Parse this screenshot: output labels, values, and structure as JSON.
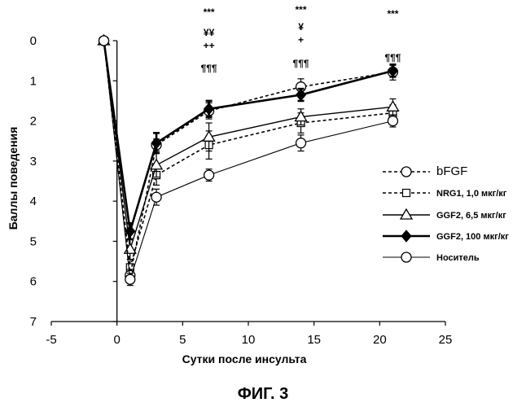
{
  "chart_data": {
    "type": "line",
    "title": "",
    "xlabel": "Сутки после инсульта",
    "ylabel": "Баллы поведения",
    "xlim": [
      -5,
      25
    ],
    "ylim": [
      0,
      7
    ],
    "y_inverted": true,
    "xticks": [
      "-5",
      "0",
      "5",
      "10",
      "15",
      "20",
      "25"
    ],
    "yticks": [
      "0",
      "1",
      "2",
      "3",
      "4",
      "5",
      "6",
      "7"
    ],
    "grid": false,
    "legend_position": "right",
    "series": [
      {
        "name": "bFGF",
        "line": "dashed",
        "marker": "circle-open",
        "points": [
          [
            -1,
            0
          ],
          [
            1,
            5.85
          ],
          [
            3,
            2.6
          ],
          [
            7,
            1.75
          ],
          [
            14,
            1.15
          ],
          [
            21,
            0.78
          ]
        ],
        "errors": [
          0,
          0.15,
          0.15,
          0.2,
          0.2,
          0.2
        ]
      },
      {
        "name": "NRG1, 1,0 мкг/кг",
        "line": "dashed",
        "marker": "square-open",
        "points": [
          [
            -1,
            0
          ],
          [
            1,
            5.65
          ],
          [
            3,
            3.35
          ],
          [
            7,
            2.6
          ],
          [
            14,
            2.05
          ],
          [
            21,
            1.8
          ]
        ],
        "errors": [
          0,
          0.2,
          0.25,
          0.35,
          0.25,
          0.2
        ]
      },
      {
        "name": "GGF2, 6,5 мкг/кг",
        "line": "solid",
        "marker": "triangle-open",
        "points": [
          [
            -1,
            0
          ],
          [
            1,
            5.2
          ],
          [
            3,
            3.1
          ],
          [
            7,
            2.4
          ],
          [
            14,
            1.9
          ],
          [
            21,
            1.65
          ]
        ],
        "errors": [
          0,
          0.25,
          0.3,
          0.35,
          0.2,
          0.2
        ]
      },
      {
        "name": "GGF2, 100 мкг/кг",
        "line": "solid-thick",
        "marker": "diamond-filled",
        "points": [
          [
            -1,
            0
          ],
          [
            1,
            4.75
          ],
          [
            3,
            2.55
          ],
          [
            7,
            1.7
          ],
          [
            14,
            1.35
          ],
          [
            21,
            0.75
          ]
        ],
        "errors": [
          0,
          0.2,
          0.25,
          0.2,
          0.15,
          0.15
        ]
      },
      {
        "name": "Носитель",
        "line": "solid-thin",
        "marker": "circle-open",
        "points": [
          [
            -1,
            0
          ],
          [
            1,
            5.95
          ],
          [
            3,
            3.9
          ],
          [
            7,
            3.35
          ],
          [
            14,
            2.55
          ],
          [
            21,
            2.0
          ]
        ],
        "errors": [
          0,
          0.15,
          0.2,
          0.15,
          0.2,
          0.15
        ]
      }
    ],
    "annotations": [
      {
        "x": 7,
        "lines": [
          "***",
          "¥¥",
          "++",
          "¶¶¶"
        ]
      },
      {
        "x": 14,
        "lines": [
          "***",
          "¥",
          "+",
          "¶¶¶"
        ]
      },
      {
        "x": 21,
        "lines": [
          "***",
          "¶¶¶"
        ]
      }
    ]
  },
  "figure": {
    "caption": "ФИГ. 3"
  }
}
